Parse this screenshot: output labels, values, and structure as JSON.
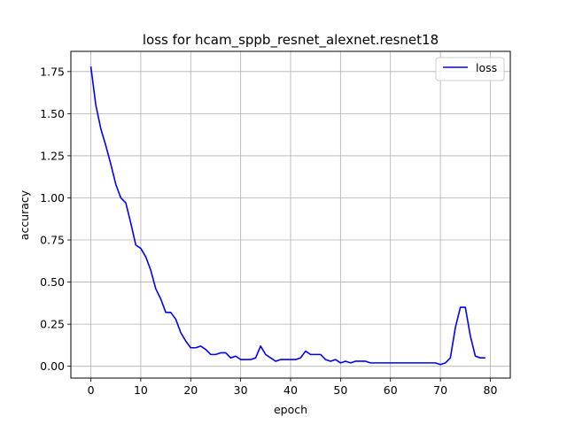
{
  "chart_data": {
    "type": "line",
    "title": "loss for hcam_sppb_resnet_alexnet.resnet18",
    "xlabel": "epoch",
    "ylabel": "accuracy",
    "xlim": [
      -4,
      84
    ],
    "ylim": [
      -0.07,
      1.87
    ],
    "xticks": [
      0,
      10,
      20,
      30,
      40,
      50,
      60,
      70,
      80
    ],
    "yticks": [
      0.0,
      0.25,
      0.5,
      0.75,
      1.0,
      1.25,
      1.5,
      1.75
    ],
    "ytick_labels": [
      "0.00",
      "0.25",
      "0.50",
      "0.75",
      "1.00",
      "1.25",
      "1.50",
      "1.75"
    ],
    "grid": true,
    "legend_position": "top-right",
    "series": [
      {
        "name": "loss",
        "color": "#0000ff",
        "x": [
          0,
          1,
          2,
          3,
          4,
          5,
          6,
          7,
          8,
          9,
          10,
          11,
          12,
          13,
          14,
          15,
          16,
          17,
          18,
          19,
          20,
          21,
          22,
          23,
          24,
          25,
          26,
          27,
          28,
          29,
          30,
          31,
          32,
          33,
          34,
          35,
          36,
          37,
          38,
          39,
          40,
          41,
          42,
          43,
          44,
          45,
          46,
          47,
          48,
          49,
          50,
          51,
          52,
          53,
          54,
          55,
          56,
          57,
          58,
          59,
          60,
          61,
          62,
          63,
          64,
          65,
          66,
          67,
          68,
          69,
          70,
          71,
          72,
          73,
          74,
          75,
          76,
          77,
          78,
          79
        ],
        "y": [
          1.78,
          1.55,
          1.41,
          1.31,
          1.2,
          1.08,
          1.0,
          0.97,
          0.85,
          0.72,
          0.7,
          0.65,
          0.57,
          0.46,
          0.4,
          0.32,
          0.32,
          0.28,
          0.2,
          0.15,
          0.11,
          0.11,
          0.12,
          0.1,
          0.07,
          0.07,
          0.08,
          0.08,
          0.05,
          0.06,
          0.04,
          0.04,
          0.04,
          0.05,
          0.12,
          0.07,
          0.05,
          0.03,
          0.04,
          0.04,
          0.04,
          0.04,
          0.05,
          0.09,
          0.07,
          0.07,
          0.07,
          0.04,
          0.03,
          0.04,
          0.02,
          0.03,
          0.02,
          0.03,
          0.03,
          0.03,
          0.02,
          0.02,
          0.02,
          0.02,
          0.02,
          0.02,
          0.02,
          0.02,
          0.02,
          0.02,
          0.02,
          0.02,
          0.02,
          0.02,
          0.01,
          0.02,
          0.05,
          0.23,
          0.35,
          0.35,
          0.18,
          0.06,
          0.05,
          0.05
        ]
      }
    ]
  }
}
